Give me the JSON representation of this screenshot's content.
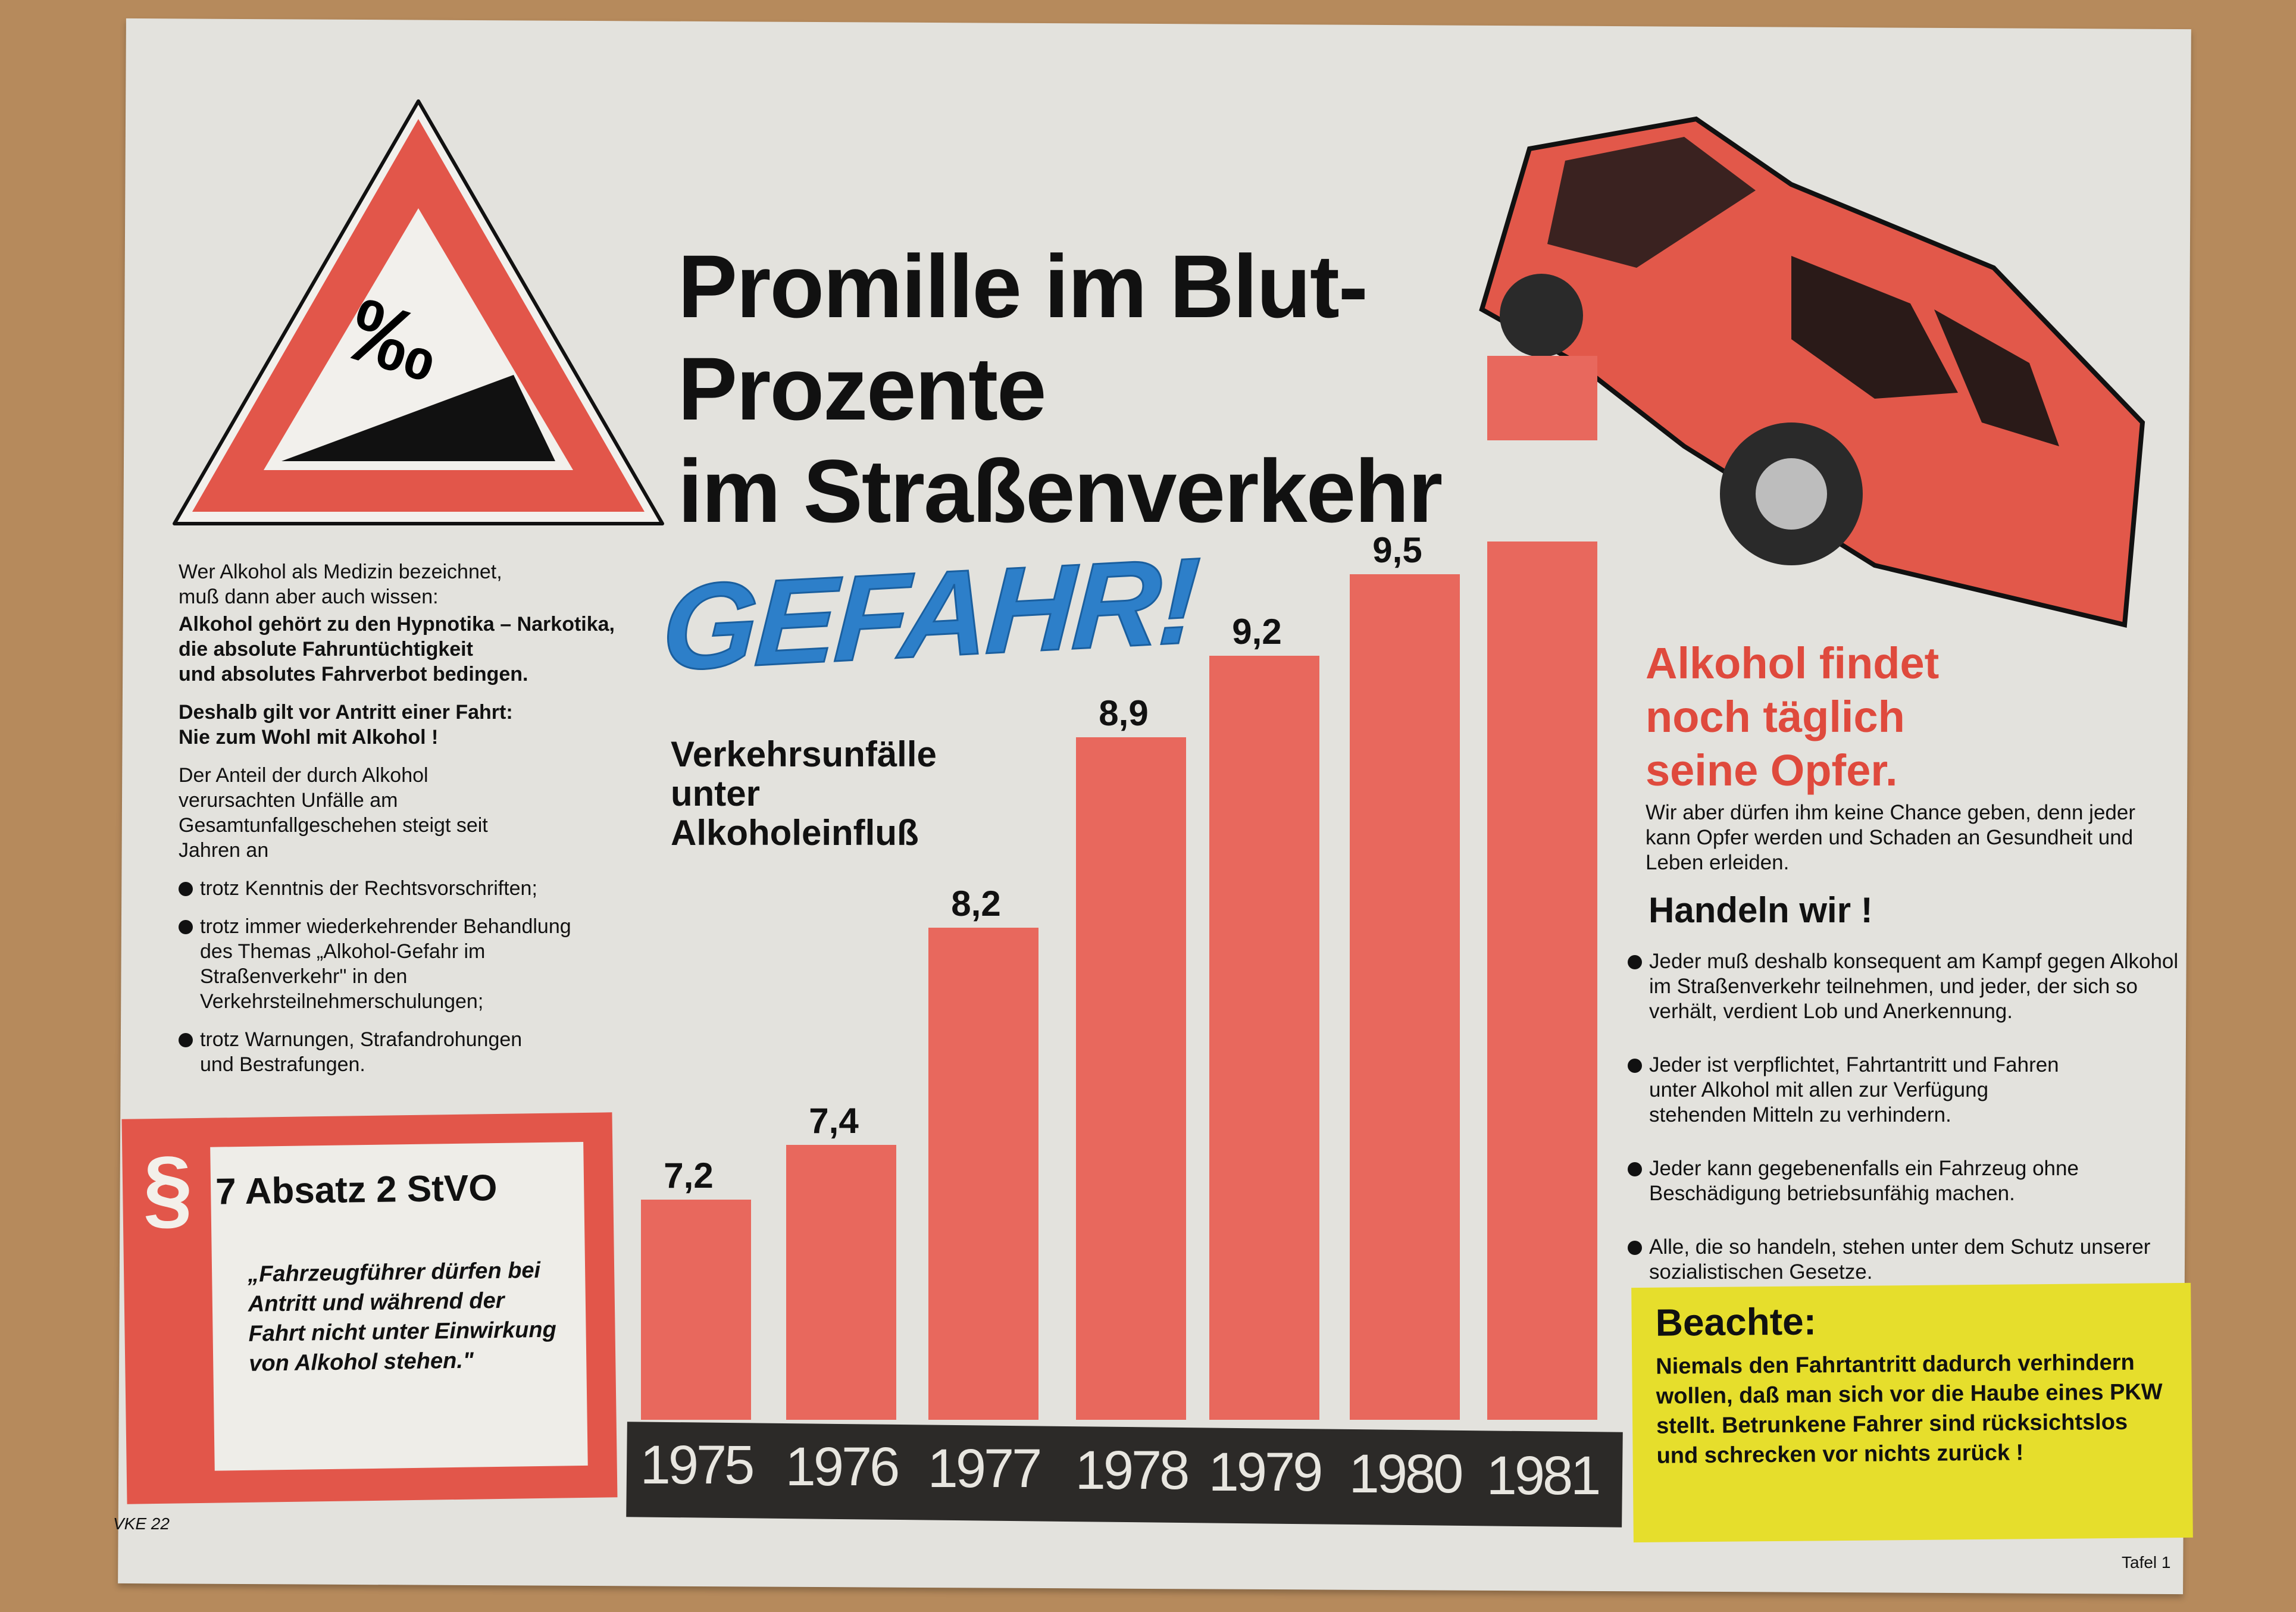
{
  "title": [
    "Promille im Blut-",
    "Prozente",
    "im Straßenverkehr"
  ],
  "sign": {
    "symbol": "‰",
    "icon": "warning-triangle-icon"
  },
  "gefahr": "GEFAHR!",
  "chart_subtitle": [
    "Verkehrsunfälle",
    "unter",
    "Alkoholeinfluß"
  ],
  "left_text": {
    "intro": [
      "Wer Alkohol als Medizin bezeichnet,",
      "muß dann aber auch wissen:"
    ],
    "bold": [
      "Alkohol gehört zu den Hypnotika – Narkotika,",
      "die absolute Fahruntüchtigkeit",
      "und absolutes Fahrverbot bedingen."
    ],
    "rule": [
      "Deshalb gilt vor Antritt einer Fahrt:",
      "Nie zum Wohl mit Alkohol !"
    ],
    "share": "Der Anteil der durch Alkohol verursachten Unfälle am Gesamtunfallgeschehen steigt seit Jahren an",
    "bullets": [
      "trotz Kenntnis der Rechtsvorschriften;",
      "trotz immer wiederkehrender Behandlung des Themas „Alkohol-Gefahr im Straßenverkehr\" in den Verkehrsteilnehmerschulungen;",
      "trotz Warnungen, Strafandrohungen und Bestrafungen."
    ]
  },
  "law_box": {
    "symbol": "§",
    "reference": "7 Absatz 2 StVO",
    "quote": "„Fahrzeugführer dürfen bei Antritt und während der Fahrt nicht unter Einwirkung von Alkohol stehen.\""
  },
  "right": {
    "headline": [
      "Alkohol findet",
      "noch täglich",
      "seine Opfer."
    ],
    "body": "Wir aber dürfen ihm keine Chance geben, denn jeder kann Opfer werden und Schaden an Gesundheit und Leben erleiden.",
    "subhead": "Handeln wir !",
    "bullets": [
      "Jeder muß deshalb konsequent am Kampf gegen Alkohol im Straßenverkehr teilnehmen, und jeder, der sich so verhält, verdient Lob und Anerkennung.",
      "Jeder ist verpflichtet, Fahrtantritt und Fahren unter Alkohol mit allen zur Verfügung stehenden Mitteln zu verhindern.",
      "Jeder kann gegebenenfalls ein Fahrzeug ohne Beschädigung betriebsunfähig machen.",
      "Alle, die so handeln, stehen unter dem Schutz unserer sozialistischen Gesetze."
    ]
  },
  "note_box": {
    "heading": "Beachte:",
    "text": "Niemals den Fahrtantritt dadurch verhindern wollen, daß man sich vor die Haube eines PKW stellt. Betrunkene Fahrer sind rücksichtslos und schrecken vor nichts zurück !"
  },
  "footer": {
    "code": "VKE 22",
    "sheet": "Tafel 1"
  },
  "colors": {
    "bar": "#e8685d",
    "accent_red": "#df4a3d",
    "gefahr_blue": "#2d7fc9",
    "note_yellow": "#e6de2c",
    "year_band": "#2c2a28"
  },
  "chart_data": {
    "type": "bar",
    "categories": [
      "1975",
      "1976",
      "1977",
      "1978",
      "1979",
      "1980",
      "1981"
    ],
    "values": [
      7.2,
      7.4,
      8.2,
      8.9,
      9.2,
      9.5,
      null
    ],
    "data_labels": [
      "7,2",
      "7,4",
      "8,2",
      "8,9",
      "9,2",
      "9,5",
      ""
    ],
    "title": "",
    "xlabel": "",
    "ylabel": "",
    "grid": false,
    "note": ""
  }
}
